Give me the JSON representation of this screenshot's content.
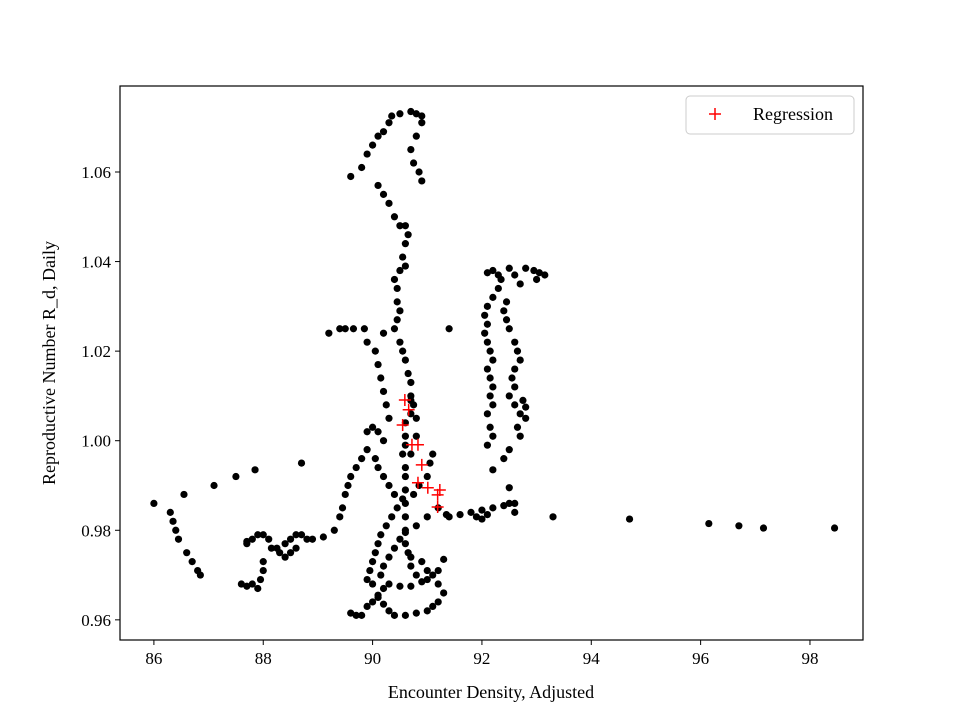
{
  "chart_data": {
    "type": "scatter",
    "x_label": "Encounter Density, Adjusted",
    "y_label": "Reproductive Number R_d, Daily",
    "xlim": [
      85.38,
      98.97
    ],
    "ylim": [
      0.9555,
      1.0792
    ],
    "xticks": [
      86,
      88,
      90,
      92,
      94,
      96,
      98
    ],
    "yticks": [
      0.96,
      0.98,
      {
        "value": 1,
        "label": "1.00"
      },
      1.02,
      1.04,
      1.06
    ],
    "legend": "upper right",
    "series": [
      {
        "color": "#000000",
        "marker": "circle",
        "x": [
          86.0,
          86.3,
          86.35,
          86.4,
          86.45,
          86.6,
          86.7,
          86.8,
          86.85,
          86.55,
          87.1,
          87.5,
          87.85,
          88.7,
          87.6,
          87.7,
          87.8,
          87.9,
          87.95,
          88.0,
          88.0,
          87.7,
          87.8,
          87.9,
          88.0,
          88.1,
          88.15,
          88.25,
          88.3,
          88.4,
          88.5,
          88.6,
          88.5,
          88.6,
          88.7,
          88.8,
          88.9,
          88.4,
          87.7,
          89.1,
          89.3,
          89.4,
          89.45,
          89.5,
          89.55,
          89.6,
          89.7,
          89.8,
          89.9,
          89.9,
          90.0,
          90.1,
          90.2,
          90.05,
          90.1,
          90.2,
          90.3,
          90.4,
          89.6,
          89.8,
          89.9,
          90.0,
          90.1,
          90.2,
          90.3,
          90.35,
          90.5,
          90.7,
          90.8,
          90.9,
          90.9,
          90.8,
          90.7,
          90.75,
          90.85,
          90.9,
          90.1,
          90.2,
          90.3,
          90.4,
          90.5,
          90.6,
          90.65,
          90.6,
          90.55,
          90.6,
          90.5,
          90.4,
          90.45,
          90.45,
          90.5,
          90.45,
          90.4,
          90.5,
          90.55,
          90.6,
          90.65,
          90.7,
          90.7,
          90.75,
          90.7,
          90.6,
          90.6,
          90.6,
          90.55,
          90.6,
          90.6,
          90.6,
          90.6,
          90.6,
          90.6,
          90.6,
          90.65,
          90.7,
          90.8,
          89.2,
          89.4,
          89.5,
          89.65,
          89.85,
          89.9,
          90.05,
          90.1,
          90.15,
          90.2,
          90.25,
          90.3,
          90.2,
          89.6,
          89.7,
          89.8,
          89.9,
          90.0,
          90.1,
          90.2,
          90.3,
          90.5,
          90.7,
          90.9,
          91.0,
          91.2,
          91.3,
          91.2,
          91.1,
          91.0,
          90.8,
          90.6,
          90.4,
          90.3,
          90.2,
          90.1,
          90.15,
          90.2,
          90.3,
          90.4,
          90.5,
          90.6,
          90.8,
          91.0,
          91.2,
          91.35,
          90.0,
          89.9,
          89.95,
          90.0,
          90.05,
          90.1,
          90.15,
          90.25,
          90.35,
          90.45,
          90.55,
          90.75,
          90.85,
          91.0,
          91.05,
          91.1,
          90.7,
          90.8,
          90.7,
          90.8,
          90.7,
          90.9,
          91.0,
          91.1,
          91.2,
          91.3,
          91.4,
          91.6,
          91.8,
          91.9,
          92.0,
          92.0,
          92.1,
          92.2,
          92.4,
          92.5,
          92.6,
          92.6,
          92.5,
          93.3,
          94.7,
          96.15,
          96.7,
          97.15,
          98.45,
          91.4,
          92.2,
          92.1,
          92.2,
          92.3,
          92.35,
          92.3,
          92.2,
          92.1,
          92.05,
          92.1,
          92.05,
          92.1,
          92.15,
          92.2,
          92.1,
          92.15,
          92.2,
          92.15,
          92.2,
          92.1,
          92.15,
          92.1,
          92.2,
          92.5,
          92.6,
          92.7,
          92.8,
          92.95,
          93.05,
          93.15,
          93.0,
          92.45,
          92.4,
          92.45,
          92.5,
          92.6,
          92.65,
          92.7,
          92.6,
          92.55,
          92.6,
          92.5,
          92.6,
          92.7,
          92.65,
          92.8,
          92.75,
          92.8,
          92.7,
          92.5,
          92.4
        ],
        "values": [
          0.986,
          0.984,
          0.982,
          0.98,
          0.978,
          0.975,
          0.973,
          0.971,
          0.97,
          0.988,
          0.99,
          0.992,
          0.9935,
          0.995,
          0.968,
          0.9675,
          0.968,
          0.967,
          0.969,
          0.971,
          0.973,
          0.977,
          0.978,
          0.979,
          0.979,
          0.978,
          0.976,
          0.976,
          0.975,
          0.974,
          0.975,
          0.976,
          0.978,
          0.979,
          0.979,
          0.978,
          0.978,
          0.977,
          0.9775,
          0.9785,
          0.98,
          0.983,
          0.985,
          0.988,
          0.99,
          0.992,
          0.994,
          0.996,
          0.998,
          1.002,
          1.003,
          1.002,
          1.0,
          0.996,
          0.994,
          0.992,
          0.99,
          0.988,
          1.059,
          1.061,
          1.064,
          1.066,
          1.068,
          1.069,
          1.071,
          1.0725,
          1.073,
          1.0735,
          1.073,
          1.0725,
          1.071,
          1.068,
          1.065,
          1.062,
          1.06,
          1.058,
          1.057,
          1.055,
          1.053,
          1.05,
          1.048,
          1.048,
          1.046,
          1.044,
          1.041,
          1.039,
          1.038,
          1.036,
          1.034,
          1.031,
          1.029,
          1.027,
          1.025,
          1.022,
          1.02,
          1.018,
          1.015,
          1.013,
          1.01,
          1.008,
          1.006,
          1.004,
          1.001,
          0.999,
          0.997,
          0.994,
          0.992,
          0.989,
          0.986,
          0.983,
          0.98,
          0.977,
          0.975,
          0.972,
          0.97,
          1.024,
          1.025,
          1.025,
          1.025,
          1.025,
          1.022,
          1.02,
          1.017,
          1.014,
          1.011,
          1.008,
          1.005,
          1.024,
          0.9615,
          0.961,
          0.961,
          0.963,
          0.964,
          0.965,
          0.967,
          0.968,
          0.9675,
          0.9675,
          0.9685,
          0.969,
          0.968,
          0.966,
          0.964,
          0.963,
          0.962,
          0.9615,
          0.961,
          0.961,
          0.962,
          0.9635,
          0.9655,
          0.97,
          0.972,
          0.974,
          0.976,
          0.978,
          0.9795,
          0.981,
          0.983,
          0.985,
          0.9835,
          0.968,
          0.969,
          0.971,
          0.973,
          0.975,
          0.977,
          0.979,
          0.981,
          0.983,
          0.985,
          0.987,
          0.988,
          0.99,
          0.992,
          0.995,
          0.997,
          0.997,
          1.001,
          1.009,
          1.005,
          0.974,
          0.973,
          0.971,
          0.97,
          0.971,
          0.9735,
          0.983,
          0.9835,
          0.984,
          0.983,
          0.9825,
          0.9845,
          0.9835,
          0.985,
          0.9855,
          0.986,
          0.986,
          0.984,
          0.9895,
          0.983,
          0.9825,
          0.9815,
          0.981,
          0.9805,
          0.9805,
          1.025,
          0.9935,
          1.0375,
          1.038,
          1.037,
          1.036,
          1.034,
          1.032,
          1.03,
          1.028,
          1.026,
          1.024,
          1.022,
          1.02,
          1.018,
          1.016,
          1.014,
          1.012,
          1.01,
          1.008,
          1.006,
          1.003,
          0.999,
          1.001,
          1.0385,
          1.037,
          1.035,
          1.0385,
          1.038,
          1.0375,
          1.037,
          1.036,
          1.031,
          1.029,
          1.027,
          1.025,
          1.022,
          1.02,
          1.018,
          1.016,
          1.014,
          1.012,
          1.01,
          1.008,
          1.006,
          1.003,
          1.0075,
          1.009,
          1.005,
          1.001,
          0.998,
          0.996
        ]
      },
      {
        "name": "Regression",
        "color": "#ff0000",
        "marker": "plus",
        "x": [
          90.59,
          90.66,
          90.55,
          90.72,
          90.83,
          90.9,
          90.83,
          91.01,
          91.23,
          91.19,
          91.19
        ],
        "values": [
          1.0091,
          1.0069,
          1.0035,
          0.9991,
          0.9991,
          0.9946,
          0.9906,
          0.9895,
          0.989,
          0.9879,
          0.9852
        ]
      }
    ]
  }
}
